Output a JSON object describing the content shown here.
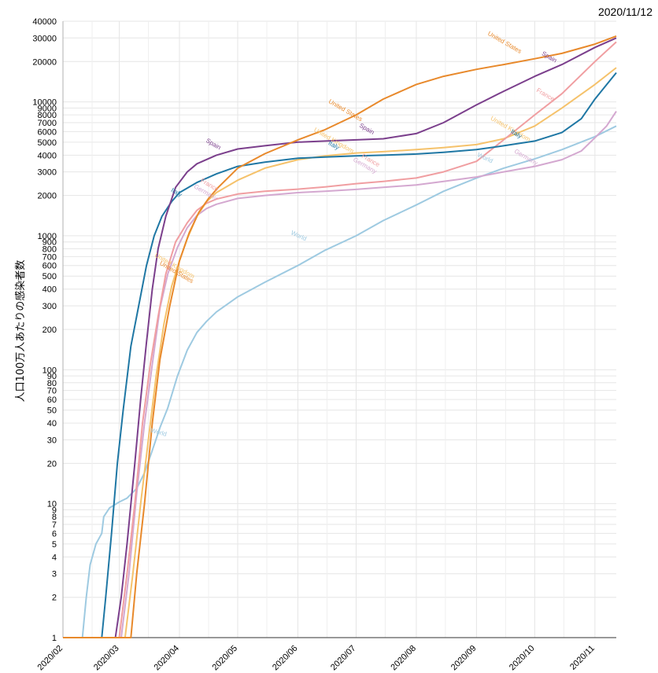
{
  "chart_data": {
    "type": "line",
    "date_stamp": "2020/11/12",
    "ylabel": "人口100万人あたりの感染者数",
    "yscale": "log",
    "ylim": [
      1,
      40000
    ],
    "xlim": [
      "2020-02-01",
      "2020-11-12"
    ],
    "x_ticks": [
      "2020/02",
      "2020/03",
      "2020/04",
      "2020/05",
      "2020/06",
      "2020/07",
      "2020/08",
      "2020/09",
      "2020/10",
      "2020/11"
    ],
    "y_ticks": [
      1,
      2,
      3,
      4,
      5,
      6,
      7,
      8,
      9,
      10,
      20,
      30,
      40,
      50,
      60,
      70,
      80,
      90,
      100,
      200,
      300,
      400,
      500,
      600,
      700,
      800,
      900,
      1000,
      2000,
      3000,
      4000,
      5000,
      6000,
      7000,
      8000,
      9000,
      10000,
      20000,
      30000,
      40000
    ],
    "y_tick_labels": [
      "1",
      "2",
      "3",
      "4",
      "5",
      "6",
      "7",
      "8",
      "9",
      "10",
      "20",
      "30",
      "40",
      "50",
      "60",
      "70",
      "80",
      "90",
      "100",
      "200",
      "300",
      "400",
      "500",
      "600",
      "700",
      "800",
      "900",
      "1000",
      "2000",
      "3000",
      "4000",
      "5000",
      "6000",
      "7000",
      "8000",
      "9000",
      "10000",
      "20000",
      "30000",
      "40000"
    ],
    "grid": true,
    "series": [
      {
        "name": "World",
        "color": "#9ecae1",
        "points": [
          [
            "2020-02-01",
            1
          ],
          [
            "2020-02-11",
            1
          ],
          [
            "2020-02-13",
            2
          ],
          [
            "2020-02-15",
            3.5
          ],
          [
            "2020-02-18",
            5
          ],
          [
            "2020-02-21",
            6
          ],
          [
            "2020-02-22",
            8
          ],
          [
            "2020-02-25",
            9.3
          ],
          [
            "2020-03-01",
            10.3
          ],
          [
            "2020-03-05",
            11
          ],
          [
            "2020-03-10",
            13
          ],
          [
            "2020-03-14",
            17
          ],
          [
            "2020-03-18",
            25
          ],
          [
            "2020-03-22",
            37
          ],
          [
            "2020-03-26",
            52
          ],
          [
            "2020-03-31",
            90
          ],
          [
            "2020-04-05",
            140
          ],
          [
            "2020-04-10",
            190
          ],
          [
            "2020-04-15",
            230
          ],
          [
            "2020-04-20",
            270
          ],
          [
            "2020-05-01",
            350
          ],
          [
            "2020-05-15",
            450
          ],
          [
            "2020-06-01",
            600
          ],
          [
            "2020-06-15",
            780
          ],
          [
            "2020-07-01",
            1000
          ],
          [
            "2020-07-15",
            1300
          ],
          [
            "2020-08-01",
            1700
          ],
          [
            "2020-08-15",
            2150
          ],
          [
            "2020-09-01",
            2700
          ],
          [
            "2020-09-15",
            3200
          ],
          [
            "2020-10-01",
            3750
          ],
          [
            "2020-10-15",
            4400
          ],
          [
            "2020-11-01",
            5500
          ],
          [
            "2020-11-12",
            6600
          ]
        ],
        "labels": [
          {
            "text": "World",
            "at": [
              "2020-03-21",
              33
            ],
            "rot": 15
          },
          {
            "text": "World",
            "at": [
              "2020-06-01",
              970
            ],
            "rot": 25
          },
          {
            "text": "World",
            "at": [
              "2020-09-05",
              3700
            ],
            "rot": 25
          }
        ]
      },
      {
        "name": "Germany",
        "color": "#d4a8d0",
        "points": [
          [
            "2020-02-01",
            1
          ],
          [
            "2020-03-02",
            1
          ],
          [
            "2020-03-06",
            3
          ],
          [
            "2020-03-10",
            12
          ],
          [
            "2020-03-14",
            40
          ],
          [
            "2020-03-18",
            110
          ],
          [
            "2020-03-22",
            290
          ],
          [
            "2020-03-26",
            520
          ],
          [
            "2020-03-31",
            820
          ],
          [
            "2020-04-05",
            1150
          ],
          [
            "2020-04-10",
            1420
          ],
          [
            "2020-04-15",
            1600
          ],
          [
            "2020-04-20",
            1720
          ],
          [
            "2020-05-01",
            1900
          ],
          [
            "2020-05-15",
            2000
          ],
          [
            "2020-06-01",
            2100
          ],
          [
            "2020-06-15",
            2150
          ],
          [
            "2020-07-01",
            2220
          ],
          [
            "2020-07-15",
            2300
          ],
          [
            "2020-08-01",
            2400
          ],
          [
            "2020-08-15",
            2550
          ],
          [
            "2020-09-01",
            2750
          ],
          [
            "2020-09-15",
            3000
          ],
          [
            "2020-10-01",
            3300
          ],
          [
            "2020-10-15",
            3700
          ],
          [
            "2020-10-25",
            4300
          ],
          [
            "2020-11-01",
            5400
          ],
          [
            "2020-11-07",
            6600
          ],
          [
            "2020-11-12",
            8500
          ]
        ],
        "labels": [
          {
            "text": "Germany",
            "at": [
              "2020-04-14",
              2050
            ],
            "rot": 30
          },
          {
            "text": "Germany",
            "at": [
              "2020-07-05",
              3250
            ],
            "rot": 30
          },
          {
            "text": "Germany",
            "at": [
              "2020-09-26",
              3750
            ],
            "rot": 30
          }
        ]
      },
      {
        "name": "United Kingdom",
        "color": "#f5c26b",
        "points": [
          [
            "2020-02-01",
            1
          ],
          [
            "2020-03-04",
            1
          ],
          [
            "2020-03-08",
            3
          ],
          [
            "2020-03-12",
            10
          ],
          [
            "2020-03-16",
            30
          ],
          [
            "2020-03-20",
            90
          ],
          [
            "2020-03-24",
            220
          ],
          [
            "2020-03-28",
            420
          ],
          [
            "2020-04-01",
            650
          ],
          [
            "2020-04-05",
            950
          ],
          [
            "2020-04-10",
            1400
          ],
          [
            "2020-04-15",
            1800
          ],
          [
            "2020-04-20",
            2100
          ],
          [
            "2020-05-01",
            2600
          ],
          [
            "2020-05-15",
            3200
          ],
          [
            "2020-06-01",
            3700
          ],
          [
            "2020-06-15",
            3950
          ],
          [
            "2020-07-01",
            4150
          ],
          [
            "2020-07-15",
            4250
          ],
          [
            "2020-08-01",
            4400
          ],
          [
            "2020-08-15",
            4550
          ],
          [
            "2020-09-01",
            4800
          ],
          [
            "2020-09-15",
            5300
          ],
          [
            "2020-10-01",
            6600
          ],
          [
            "2020-10-15",
            9000
          ],
          [
            "2020-11-01",
            13500
          ],
          [
            "2020-11-12",
            18000
          ]
        ],
        "labels": [
          {
            "text": "United Kingdom",
            "at": [
              "2020-03-29",
              580
            ],
            "rot": 30
          },
          {
            "text": "United Kingdom",
            "at": [
              "2020-06-19",
              5000
            ],
            "rot": 30
          },
          {
            "text": "United Kingdom",
            "at": [
              "2020-09-18",
              6100
            ],
            "rot": 30
          }
        ]
      },
      {
        "name": "France",
        "color": "#f09ea1",
        "points": [
          [
            "2020-02-01",
            1
          ],
          [
            "2020-03-01",
            1
          ],
          [
            "2020-03-05",
            3
          ],
          [
            "2020-03-09",
            10
          ],
          [
            "2020-03-13",
            40
          ],
          [
            "2020-03-17",
            110
          ],
          [
            "2020-03-21",
            250
          ],
          [
            "2020-03-25",
            520
          ],
          [
            "2020-03-30",
            900
          ],
          [
            "2020-04-05",
            1250
          ],
          [
            "2020-04-10",
            1550
          ],
          [
            "2020-04-15",
            1750
          ],
          [
            "2020-04-20",
            1880
          ],
          [
            "2020-05-01",
            2050
          ],
          [
            "2020-05-15",
            2150
          ],
          [
            "2020-06-01",
            2230
          ],
          [
            "2020-06-15",
            2320
          ],
          [
            "2020-07-01",
            2450
          ],
          [
            "2020-07-15",
            2550
          ],
          [
            "2020-08-01",
            2700
          ],
          [
            "2020-08-15",
            3000
          ],
          [
            "2020-09-01",
            3600
          ],
          [
            "2020-09-15",
            5200
          ],
          [
            "2020-10-01",
            8000
          ],
          [
            "2020-10-15",
            11500
          ],
          [
            "2020-11-01",
            20000
          ],
          [
            "2020-11-12",
            28000
          ]
        ],
        "labels": [
          {
            "text": "France",
            "at": [
              "2020-04-16",
              2330
            ],
            "rot": 30
          },
          {
            "text": "France",
            "at": [
              "2020-07-08",
              3550
            ],
            "rot": 30
          },
          {
            "text": "France",
            "at": [
              "2020-10-06",
              11000
            ],
            "rot": 30
          }
        ]
      },
      {
        "name": "Italy",
        "color": "#1f77a4",
        "points": [
          [
            "2020-02-01",
            1
          ],
          [
            "2020-02-21",
            1
          ],
          [
            "2020-02-23",
            2
          ],
          [
            "2020-02-26",
            6
          ],
          [
            "2020-02-29",
            20
          ],
          [
            "2020-03-03",
            50
          ],
          [
            "2020-03-07",
            150
          ],
          [
            "2020-03-11",
            300
          ],
          [
            "2020-03-15",
            600
          ],
          [
            "2020-03-19",
            1000
          ],
          [
            "2020-03-23",
            1400
          ],
          [
            "2020-03-28",
            1800
          ],
          [
            "2020-04-01",
            2100
          ],
          [
            "2020-04-10",
            2500
          ],
          [
            "2020-04-20",
            2900
          ],
          [
            "2020-05-01",
            3300
          ],
          [
            "2020-05-15",
            3550
          ],
          [
            "2020-06-01",
            3800
          ],
          [
            "2020-06-15",
            3870
          ],
          [
            "2020-07-01",
            3950
          ],
          [
            "2020-07-15",
            4000
          ],
          [
            "2020-08-01",
            4080
          ],
          [
            "2020-08-15",
            4200
          ],
          [
            "2020-09-01",
            4400
          ],
          [
            "2020-09-15",
            4700
          ],
          [
            "2020-10-01",
            5100
          ],
          [
            "2020-10-15",
            5900
          ],
          [
            "2020-10-25",
            7500
          ],
          [
            "2020-11-01",
            10500
          ],
          [
            "2020-11-12",
            16500
          ]
        ],
        "labels": [
          {
            "text": "Italy",
            "at": [
              "2020-03-30",
              2050
            ],
            "rot": 30
          },
          {
            "text": "Italy",
            "at": [
              "2020-06-19",
              4600
            ],
            "rot": 30
          },
          {
            "text": "Italy",
            "at": [
              "2020-09-21",
              5600
            ],
            "rot": 30
          }
        ]
      },
      {
        "name": "Spain",
        "color": "#7b3f8c",
        "points": [
          [
            "2020-02-01",
            1
          ],
          [
            "2020-02-28",
            1
          ],
          [
            "2020-03-02",
            2
          ],
          [
            "2020-03-05",
            5
          ],
          [
            "2020-03-09",
            20
          ],
          [
            "2020-03-12",
            60
          ],
          [
            "2020-03-15",
            160
          ],
          [
            "2020-03-18",
            400
          ],
          [
            "2020-03-21",
            800
          ],
          [
            "2020-03-25",
            1400
          ],
          [
            "2020-03-30",
            2300
          ],
          [
            "2020-04-05",
            3000
          ],
          [
            "2020-04-10",
            3450
          ],
          [
            "2020-04-20",
            4000
          ],
          [
            "2020-05-01",
            4450
          ],
          [
            "2020-05-15",
            4700
          ],
          [
            "2020-06-01",
            5000
          ],
          [
            "2020-06-15",
            5100
          ],
          [
            "2020-07-01",
            5200
          ],
          [
            "2020-07-15",
            5300
          ],
          [
            "2020-08-01",
            5800
          ],
          [
            "2020-08-15",
            7000
          ],
          [
            "2020-09-01",
            9500
          ],
          [
            "2020-09-15",
            12000
          ],
          [
            "2020-10-01",
            15500
          ],
          [
            "2020-10-15",
            19000
          ],
          [
            "2020-11-01",
            25500
          ],
          [
            "2020-11-12",
            30000
          ]
        ],
        "labels": [
          {
            "text": "Spain",
            "at": [
              "2020-04-18",
              4700
            ],
            "rot": 30
          },
          {
            "text": "Spain",
            "at": [
              "2020-07-06",
              6100
            ],
            "rot": 30
          },
          {
            "text": "Spain",
            "at": [
              "2020-10-08",
              21000
            ],
            "rot": 30
          }
        ]
      },
      {
        "name": "United States",
        "color": "#e8892b",
        "points": [
          [
            "2020-02-01",
            1
          ],
          [
            "2020-03-07",
            1
          ],
          [
            "2020-03-10",
            3
          ],
          [
            "2020-03-14",
            10
          ],
          [
            "2020-03-18",
            40
          ],
          [
            "2020-03-22",
            120
          ],
          [
            "2020-03-27",
            300
          ],
          [
            "2020-04-01",
            650
          ],
          [
            "2020-04-06",
            1050
          ],
          [
            "2020-04-11",
            1500
          ],
          [
            "2020-04-16",
            1900
          ],
          [
            "2020-04-21",
            2300
          ],
          [
            "2020-05-01",
            3200
          ],
          [
            "2020-05-15",
            4100
          ],
          [
            "2020-06-01",
            5200
          ],
          [
            "2020-06-15",
            6200
          ],
          [
            "2020-07-01",
            8000
          ],
          [
            "2020-07-15",
            10500
          ],
          [
            "2020-08-01",
            13500
          ],
          [
            "2020-08-15",
            15500
          ],
          [
            "2020-09-01",
            17500
          ],
          [
            "2020-09-15",
            19000
          ],
          [
            "2020-10-01",
            21000
          ],
          [
            "2020-10-15",
            23000
          ],
          [
            "2020-11-01",
            27000
          ],
          [
            "2020-11-12",
            31000
          ]
        ],
        "labels": [
          {
            "text": "United States",
            "at": [
              "2020-03-30",
              520
            ],
            "rot": 30
          },
          {
            "text": "United States",
            "at": [
              "2020-06-25",
              8400
            ],
            "rot": 30
          },
          {
            "text": "United States",
            "at": [
              "2020-09-15",
              27000
            ],
            "rot": 30
          }
        ]
      }
    ]
  }
}
